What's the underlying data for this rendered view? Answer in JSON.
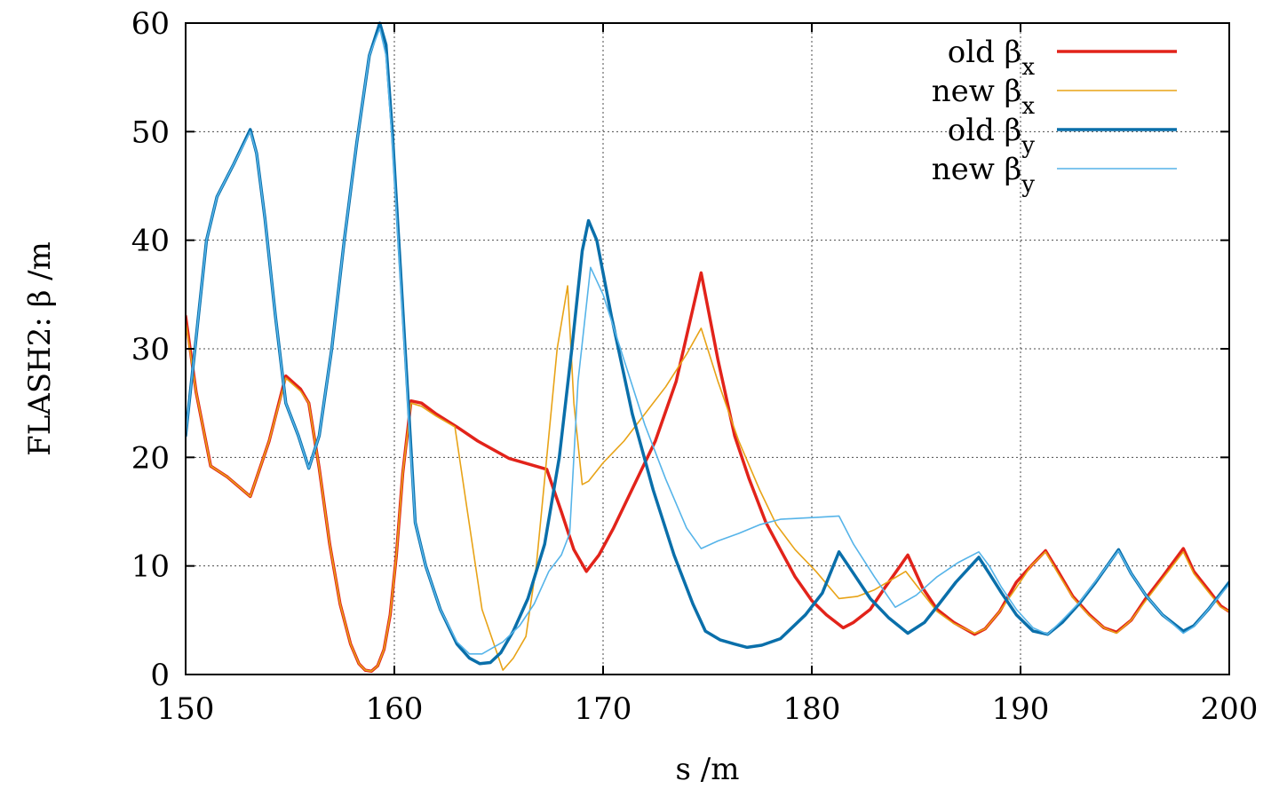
{
  "chart_data": {
    "type": "line",
    "title": "",
    "xlabel": "s /m",
    "ylabel": "FLASH2: β /m",
    "xlim": [
      150,
      200
    ],
    "ylim": [
      0,
      60
    ],
    "x_ticks": [
      150,
      160,
      170,
      180,
      190,
      200
    ],
    "y_ticks": [
      0,
      10,
      20,
      30,
      40,
      50,
      60
    ],
    "grid": true,
    "legend_position": "top-right",
    "series": [
      {
        "name": "old β",
        "subscript": "x",
        "color": "#e2231a",
        "width": "thick",
        "x": [
          150.0,
          150.5,
          151.2,
          152.0,
          153.1,
          154.0,
          154.8,
          155.5,
          155.9,
          156.4,
          156.9,
          157.4,
          157.9,
          158.3,
          158.6,
          158.9,
          159.2,
          159.5,
          159.8,
          160.1,
          160.4,
          160.8,
          161.3,
          162.0,
          163.0,
          164.0,
          165.5,
          167.3,
          168.0,
          168.6,
          169.2,
          169.8,
          170.5,
          171.5,
          172.5,
          173.5,
          174.7,
          175.5,
          176.3,
          177.0,
          177.8,
          178.5,
          179.2,
          180.0,
          180.7,
          181.5,
          182.0,
          182.8,
          183.5,
          184.6,
          185.3,
          186.0,
          186.8,
          187.8,
          188.3,
          189.0,
          189.8,
          190.5,
          191.2,
          191.8,
          192.5,
          193.3,
          194.0,
          194.6,
          195.3,
          196.0,
          196.8,
          197.8,
          198.3,
          199.0,
          199.6,
          200.0
        ],
        "y": [
          33.0,
          26.0,
          19.2,
          18.2,
          16.4,
          21.5,
          27.5,
          26.3,
          25.0,
          19.0,
          12.0,
          6.5,
          2.8,
          1.0,
          0.4,
          0.3,
          0.8,
          2.3,
          5.5,
          11.0,
          18.5,
          25.2,
          25.0,
          24.0,
          22.8,
          21.5,
          19.9,
          18.9,
          15.0,
          11.5,
          9.5,
          11.0,
          13.5,
          17.5,
          21.5,
          27.0,
          37.0,
          29.0,
          22.0,
          18.0,
          14.0,
          11.5,
          9.0,
          6.8,
          5.5,
          4.3,
          4.8,
          6.0,
          8.0,
          11.0,
          8.0,
          6.0,
          4.8,
          3.7,
          4.2,
          5.8,
          8.5,
          10.0,
          11.4,
          9.5,
          7.2,
          5.5,
          4.3,
          3.9,
          5.0,
          7.0,
          9.0,
          11.6,
          9.5,
          7.8,
          6.3,
          5.8
        ]
      },
      {
        "name": "new β",
        "subscript": "x",
        "color": "#e8a317",
        "width": "thin",
        "x": [
          150.0,
          150.5,
          151.2,
          152.0,
          153.1,
          154.0,
          154.8,
          155.5,
          155.9,
          156.4,
          156.9,
          157.4,
          157.9,
          158.3,
          158.6,
          158.9,
          159.2,
          159.5,
          159.8,
          160.1,
          160.4,
          160.8,
          161.3,
          162.0,
          162.9,
          163.5,
          164.2,
          165.2,
          165.7,
          166.3,
          166.8,
          167.3,
          167.8,
          168.3,
          168.6,
          169.0,
          169.3,
          170.0,
          171.0,
          172.0,
          173.0,
          174.0,
          174.7,
          175.5,
          176.5,
          177.5,
          178.3,
          179.2,
          180.2,
          181.3,
          182.2,
          183.0,
          184.5,
          185.3,
          186.0,
          186.8,
          187.8,
          188.3,
          189.0,
          189.8,
          190.5,
          191.2,
          191.8,
          192.5,
          193.3,
          194.0,
          194.6,
          195.3,
          196.0,
          196.8,
          197.8,
          198.3,
          199.0,
          199.6,
          200.0
        ],
        "y": [
          32.5,
          26.0,
          19.2,
          18.2,
          16.4,
          21.5,
          27.3,
          26.1,
          25.0,
          19.0,
          12.0,
          6.5,
          2.8,
          1.0,
          0.4,
          0.3,
          0.8,
          2.3,
          5.5,
          11.0,
          18.5,
          25.0,
          24.7,
          23.8,
          22.8,
          15.0,
          6.0,
          0.4,
          1.5,
          3.5,
          10.0,
          20.0,
          30.0,
          35.8,
          25.0,
          17.5,
          17.8,
          19.5,
          21.5,
          24.0,
          26.5,
          29.5,
          31.9,
          27.0,
          21.5,
          17.0,
          13.8,
          11.5,
          9.5,
          7.0,
          7.2,
          7.8,
          9.5,
          7.5,
          5.8,
          4.7,
          3.8,
          4.2,
          5.8,
          8.0,
          10.0,
          11.3,
          9.3,
          7.1,
          5.4,
          4.3,
          3.8,
          5.0,
          6.8,
          8.8,
          11.3,
          9.3,
          7.6,
          6.2,
          5.8
        ]
      },
      {
        "name": "old β",
        "subscript": "y",
        "color": "#0a6faa",
        "width": "thick",
        "x": [
          150.0,
          150.5,
          151.0,
          151.5,
          152.3,
          153.1,
          153.4,
          153.8,
          154.3,
          154.8,
          155.4,
          155.9,
          156.4,
          157.0,
          157.6,
          158.2,
          158.8,
          159.3,
          159.6,
          159.9,
          160.3,
          160.7,
          161.0,
          161.5,
          162.2,
          163.0,
          163.6,
          164.1,
          164.6,
          165.1,
          165.7,
          166.4,
          167.2,
          167.9,
          168.5,
          169.0,
          169.3,
          169.7,
          170.4,
          171.4,
          172.4,
          173.4,
          174.3,
          174.9,
          175.6,
          176.3,
          176.9,
          177.6,
          178.5,
          179.7,
          180.5,
          181.3,
          182.0,
          182.8,
          183.7,
          184.6,
          185.4,
          186.1,
          186.9,
          188.0,
          188.5,
          189.1,
          189.8,
          190.6,
          191.3,
          192.0,
          192.8,
          193.6,
          194.7,
          195.3,
          196.0,
          196.8,
          197.8,
          198.3,
          199.0,
          199.6,
          200.0
        ],
        "y": [
          22.0,
          31.0,
          40.0,
          44.0,
          47.0,
          50.2,
          48.0,
          42.0,
          33.0,
          25.0,
          22.0,
          19.0,
          22.0,
          30.0,
          40.0,
          49.0,
          57.0,
          60.0,
          58.0,
          50.0,
          37.0,
          24.0,
          14.0,
          10.0,
          6.0,
          2.8,
          1.5,
          1.0,
          1.1,
          2.0,
          4.0,
          7.0,
          12.0,
          20.0,
          30.0,
          39.0,
          41.8,
          40.0,
          33.0,
          24.0,
          17.0,
          11.0,
          6.5,
          4.0,
          3.2,
          2.8,
          2.5,
          2.7,
          3.3,
          5.5,
          7.5,
          11.3,
          9.3,
          7.0,
          5.2,
          3.8,
          4.8,
          6.5,
          8.5,
          10.8,
          9.3,
          7.5,
          5.5,
          4.0,
          3.7,
          4.8,
          6.5,
          8.5,
          11.5,
          9.3,
          7.3,
          5.5,
          4.0,
          4.5,
          6.0,
          7.5,
          8.5
        ]
      },
      {
        "name": "new β",
        "subscript": "y",
        "color": "#56b4e9",
        "width": "thin",
        "x": [
          150.0,
          150.5,
          151.0,
          151.5,
          152.3,
          153.1,
          153.4,
          153.8,
          154.3,
          154.8,
          155.4,
          155.9,
          156.4,
          157.0,
          157.6,
          158.2,
          158.8,
          159.3,
          159.6,
          159.9,
          160.3,
          160.7,
          161.0,
          161.5,
          162.2,
          163.0,
          163.6,
          164.2,
          165.2,
          166.0,
          166.7,
          167.4,
          168.0,
          168.4,
          168.8,
          169.4,
          170.0,
          171.0,
          172.0,
          173.0,
          174.0,
          174.7,
          175.5,
          176.5,
          177.5,
          178.5,
          179.5,
          180.5,
          181.3,
          182.0,
          183.0,
          184.0,
          185.0,
          186.0,
          187.0,
          188.0,
          188.5,
          189.1,
          189.8,
          190.6,
          191.3,
          192.0,
          192.8,
          193.6,
          194.7,
          195.3,
          196.0,
          196.8,
          197.8,
          198.3,
          199.0,
          199.6,
          200.0
        ],
        "y": [
          22.0,
          31.0,
          40.0,
          44.0,
          47.0,
          50.0,
          48.0,
          42.0,
          33.0,
          25.0,
          22.0,
          19.0,
          22.0,
          30.0,
          40.0,
          49.0,
          57.0,
          59.5,
          57.0,
          49.0,
          36.0,
          23.0,
          14.0,
          10.0,
          6.0,
          3.0,
          1.9,
          1.9,
          3.0,
          4.5,
          6.5,
          9.5,
          11.0,
          13.0,
          27.0,
          37.5,
          35.0,
          29.0,
          23.0,
          18.0,
          13.5,
          11.6,
          12.3,
          13.0,
          13.8,
          14.3,
          14.4,
          14.5,
          14.6,
          12.0,
          9.0,
          6.2,
          7.3,
          9.0,
          10.3,
          11.3,
          10.0,
          8.0,
          6.0,
          4.3,
          3.7,
          5.0,
          6.6,
          8.6,
          11.4,
          9.3,
          7.3,
          5.5,
          3.8,
          4.4,
          6.0,
          7.4,
          8.3
        ]
      }
    ]
  }
}
